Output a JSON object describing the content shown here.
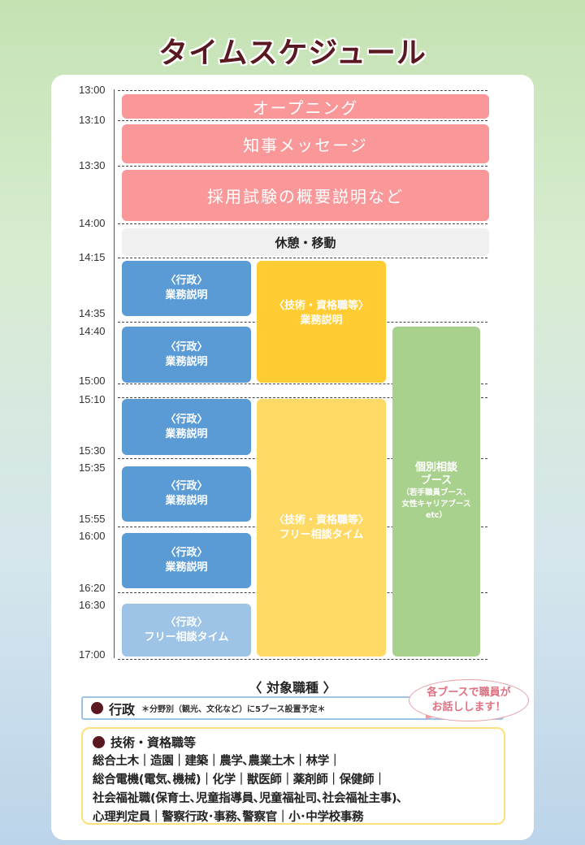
{
  "title": "タイムスケジュール",
  "times": [
    "13:00",
    "13:10",
    "13:30",
    "14:00",
    "14:15",
    "14:35",
    "14:40",
    "15:00",
    "15:10",
    "15:30",
    "15:35",
    "15:55",
    "16:00",
    "16:20",
    "16:30",
    "17:00"
  ],
  "blocks": {
    "opening": "オープニング",
    "message": "知事メッセージ",
    "overview": "採用試験の概要説明など",
    "break": "休憩・移動",
    "gyosei_line1": "〈行政〉",
    "gyosei_line2": "業務説明",
    "gyosei_free": "フリー相談タイム",
    "gijutsu_line1": "〈技術・資格職等〉",
    "gijutsu_line2": "業務説明",
    "gijutsu_free": "フリー相談タイム",
    "booth_line1": "個別相談",
    "booth_line2": "ブース",
    "booth_note1": "（若手職員ブース、",
    "booth_note2": "女性キャリアブース",
    "booth_note3": "etc）"
  },
  "target": {
    "heading": "〈 対象職種 〉",
    "gyosei_label": "行政",
    "gyosei_note": "＊分野別（観光、文化など）に5ブース設置予定＊",
    "gijutsu_label": "技術・資格職等",
    "gijutsu_lines": [
      "総合土木｜造園｜建築｜農学､農業土木｜林学｜",
      "総合電機(電気､機械)｜化学｜獣医師｜薬剤師｜保健師｜",
      "社会福祉職(保育士､児童指導員､児童福祉司､社会福祉主事)､",
      "心理判定員｜警察行政･事務､警察官｜小･中学校事務"
    ],
    "bubble_line1": "各ブースで職員が",
    "bubble_line2": "お話しします！"
  },
  "colors": {
    "title": "#5a1820",
    "pink": "#f99799",
    "blue": "#5b9bd5",
    "light_blue": "#9dc3e6",
    "yellow": "#ffcc33",
    "light_yellow": "#ffd966",
    "green": "#a9d18e"
  }
}
